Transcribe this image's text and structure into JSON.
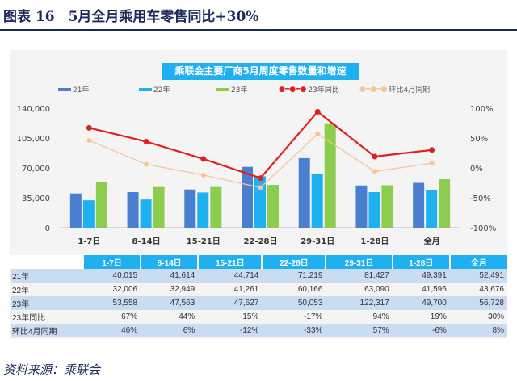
{
  "header": {
    "title": "图表 16　5月全月乘用车零售同比+30%"
  },
  "source": "资料来源：乘联会",
  "colors": {
    "y21": "#4a7fd0",
    "y22": "#1fb0f0",
    "y23": "#8ccc4e",
    "yoy": "#e0201e",
    "mom": "#f6c49a"
  },
  "chart_data": {
    "type": "bar+line",
    "title": "乘联会主要厂商5月周度零售数量和增速",
    "categories": [
      "1-7日",
      "8-14日",
      "15-21日",
      "22-28日",
      "29-31日",
      "1-28日",
      "全月"
    ],
    "series": [
      {
        "name": "21年",
        "type": "bar",
        "axis": "left",
        "values": [
          40015,
          41614,
          44714,
          71219,
          81427,
          49391,
          52491
        ]
      },
      {
        "name": "22年",
        "type": "bar",
        "axis": "left",
        "values": [
          32006,
          32949,
          41261,
          60166,
          63090,
          41596,
          43676
        ]
      },
      {
        "name": "23年",
        "type": "bar",
        "axis": "left",
        "values": [
          53558,
          47563,
          47627,
          50053,
          122317,
          49700,
          56728
        ]
      },
      {
        "name": "23年同比",
        "type": "line",
        "axis": "right",
        "values": [
          "67%",
          "44%",
          "15%",
          "-17%",
          "94%",
          "19%",
          "30%"
        ]
      },
      {
        "name": "环比4月同期",
        "type": "line",
        "axis": "right",
        "values": [
          "46%",
          "6%",
          "-12%",
          "-33%",
          "57%",
          "-6%",
          "8%"
        ]
      }
    ],
    "left_ticks": [
      "140,000",
      "105,000",
      "70,000",
      "35,000",
      "0"
    ],
    "left_ylim": [
      0,
      140000
    ],
    "right_ticks": [
      "100%",
      "50%",
      "0%",
      "-50%",
      "-100%"
    ],
    "right_ylim": [
      -100,
      100
    ],
    "legend": "top",
    "table_rows": [
      "21年",
      "22年",
      "23年",
      "23年同比",
      "环比4月同期"
    ],
    "table_values": [
      [
        "40,015",
        "41,614",
        "44,714",
        "71,219",
        "81,427",
        "49,391",
        "52,491"
      ],
      [
        "32,006",
        "32,949",
        "41,261",
        "60,166",
        "63,090",
        "41,596",
        "43,676"
      ],
      [
        "53,558",
        "47,563",
        "47,627",
        "50,053",
        "122,317",
        "49,700",
        "56,728"
      ],
      [
        "67%",
        "44%",
        "15%",
        "-17%",
        "94%",
        "19%",
        "30%"
      ],
      [
        "46%",
        "6%",
        "-12%",
        "-33%",
        "57%",
        "-6%",
        "8%"
      ]
    ]
  }
}
